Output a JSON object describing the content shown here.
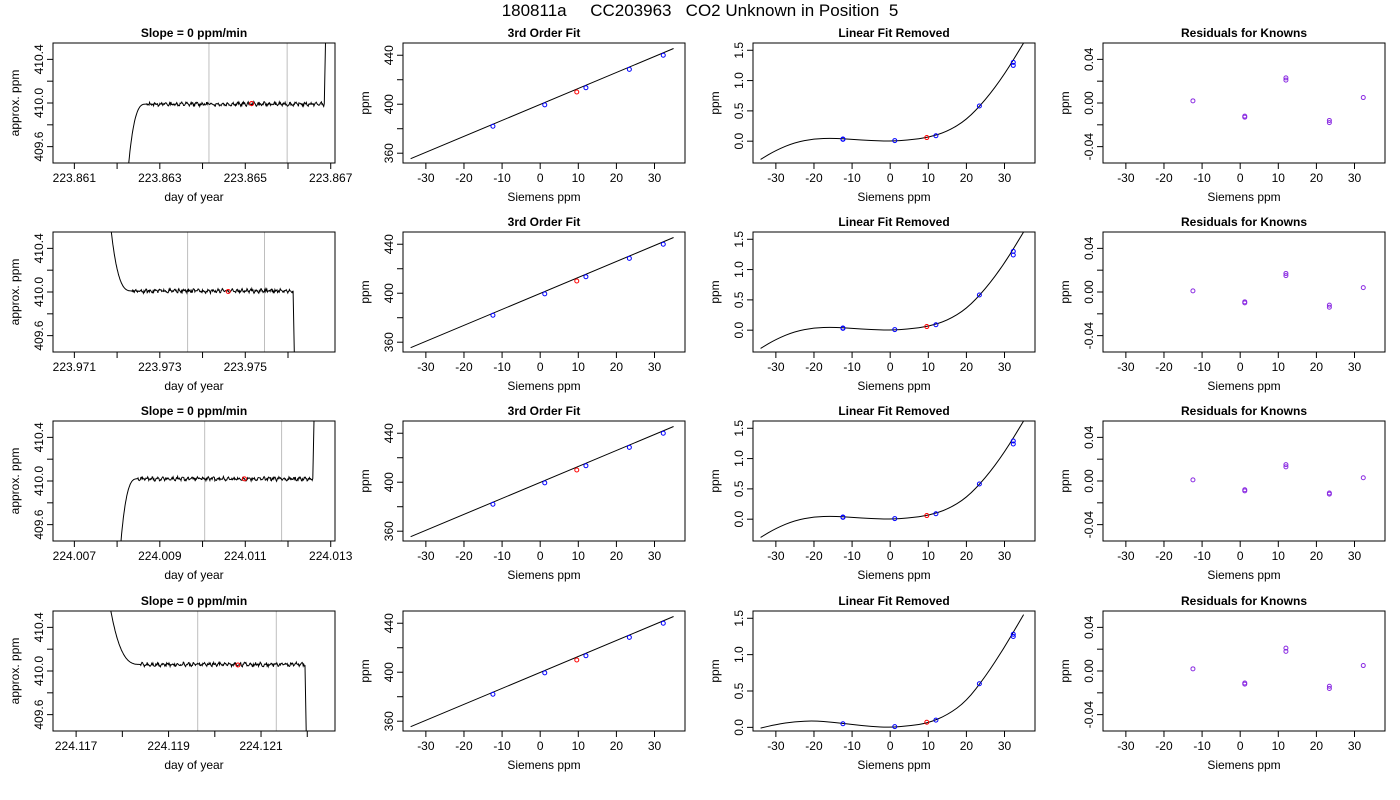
{
  "title": "180811a     CC203963   CO2 Unknown in Position  5",
  "colors": {
    "line": "#000000",
    "vline": "#bebebe",
    "known": "#0000ff",
    "unknown": "#ff0000",
    "resid": "#8a2be2"
  },
  "chart_data": [
    {
      "type": "line",
      "title": "Slope =  0  ppm/min",
      "xlabel": "day of year",
      "ylabel": "approx. ppm",
      "xlim": [
        223.8605,
        223.8671
      ],
      "ylim": [
        409.45,
        410.55
      ],
      "xticks": [
        223.861,
        223.862,
        223.863,
        223.864,
        223.865,
        223.866,
        223.867
      ],
      "xtick_labels": [
        "223.861",
        "",
        "223.863",
        "",
        "223.865",
        "",
        "223.867"
      ],
      "yticks": [
        409.6,
        409.8,
        410.0,
        410.2,
        410.4
      ],
      "ytick_labels": [
        "409.6",
        "",
        "410.0",
        "",
        "410.4"
      ],
      "trace": {
        "x0": 223.86226,
        "rise_end": 223.86268,
        "x_end": 223.86685,
        "plateau": 409.99,
        "start_low": 409.4,
        "end_high": 410.6,
        "shape": "rise_then_rise"
      },
      "vlines": [
        223.86415,
        223.86598
      ],
      "marker": {
        "x": 223.86515,
        "y": 409.995
      }
    },
    {
      "type": "scatter_fit",
      "title": "3rd Order Fit",
      "xlabel": "Siemens ppm",
      "ylabel": "ppm",
      "xlim": [
        -36,
        38
      ],
      "ylim": [
        352,
        450
      ],
      "xticks": [
        -30,
        -20,
        -10,
        0,
        10,
        20,
        30
      ],
      "yticks": [
        360,
        380,
        400,
        420,
        440
      ],
      "ytick_labels": [
        "360",
        "",
        "400",
        "",
        "440"
      ],
      "fit_line": {
        "x0": -34,
        "y0": 355.5,
        "x1": 35,
        "y1": 445.5
      },
      "known_points": [
        [
          -12.4,
          382
        ],
        [
          1.2,
          399.5
        ],
        [
          12.0,
          413.5
        ],
        [
          23.4,
          428.5
        ],
        [
          32.3,
          440
        ]
      ],
      "unknown_points": [
        [
          9.6,
          410
        ]
      ]
    },
    {
      "type": "scatter_fit",
      "title": "Linear Fit Removed",
      "xlabel": "Siemens ppm",
      "ylabel": "ppm",
      "xlim": [
        -36,
        38
      ],
      "ylim": [
        -0.36,
        1.62
      ],
      "xticks": [
        -30,
        -20,
        -10,
        0,
        10,
        20,
        30
      ],
      "yticks": [
        0.0,
        0.5,
        1.0,
        1.5
      ],
      "ytick_labels": [
        "0.0",
        "0.5",
        "1.0",
        "1.5"
      ],
      "curve": [
        [
          -34,
          -0.3
        ],
        [
          -30,
          -0.15
        ],
        [
          -25,
          -0.02
        ],
        [
          -20,
          0.04
        ],
        [
          -15,
          0.05
        ],
        [
          -10,
          0.03
        ],
        [
          -5,
          0.01
        ],
        [
          0,
          0.0
        ],
        [
          5,
          0.02
        ],
        [
          10,
          0.06
        ],
        [
          15,
          0.16
        ],
        [
          20,
          0.35
        ],
        [
          25,
          0.68
        ],
        [
          30,
          1.1
        ],
        [
          35,
          1.62
        ]
      ],
      "known_points": [
        [
          -12.4,
          0.03
        ],
        [
          -12.4,
          0.035
        ],
        [
          1.2,
          0.01
        ],
        [
          12.0,
          0.09
        ],
        [
          23.4,
          0.58
        ],
        [
          32.3,
          1.25
        ],
        [
          32.3,
          1.3
        ]
      ],
      "unknown_points": [
        [
          9.6,
          0.06
        ]
      ]
    },
    {
      "type": "scatter",
      "title": "Residuals for Knowns",
      "xlabel": "Siemens ppm",
      "ylabel": "ppm",
      "xlim": [
        -36,
        38
      ],
      "ylim": [
        -0.055,
        0.055
      ],
      "xticks": [
        -30,
        -20,
        -10,
        0,
        10,
        20,
        30
      ],
      "yticks": [
        -0.04,
        -0.02,
        0.0,
        0.02,
        0.04
      ],
      "ytick_labels": [
        "-0.04",
        "",
        "0.00",
        "",
        "0.04"
      ],
      "points": [
        [
          -12.4,
          0.002
        ],
        [
          1.2,
          -0.012
        ],
        [
          1.2,
          -0.013
        ],
        [
          12.0,
          0.021
        ],
        [
          12.0,
          0.023
        ],
        [
          23.4,
          -0.016
        ],
        [
          23.4,
          -0.018
        ],
        [
          32.3,
          0.005
        ]
      ]
    },
    {
      "type": "line",
      "title": "",
      "xlabel": "day of year",
      "ylabel": "approx. ppm",
      "xlim": [
        223.9705,
        223.9771
      ],
      "ylim": [
        409.45,
        410.55
      ],
      "xticks": [
        223.971,
        223.972,
        223.973,
        223.974,
        223.975,
        223.976
      ],
      "xtick_labels": [
        "223.971",
        "",
        "223.973",
        "",
        "223.975",
        ""
      ],
      "yticks": [
        409.6,
        409.8,
        410.0,
        410.2,
        410.4
      ],
      "ytick_labels": [
        "409.6",
        "",
        "410.0",
        "",
        "410.4"
      ],
      "trace": {
        "x0": 223.97185,
        "rise_end": 223.97235,
        "x_end": 223.97612,
        "plateau": 410.01,
        "start_low": 410.6,
        "end_high": 409.4,
        "shape": "fall_then_fall"
      },
      "vlines": [
        223.97365,
        223.97545
      ],
      "marker": {
        "x": 223.9746,
        "y": 410.005
      }
    },
    {
      "type": "scatter_fit",
      "title": "3rd Order Fit",
      "xlabel": "Siemens ppm",
      "ylabel": "ppm",
      "xlim": [
        -36,
        38
      ],
      "ylim": [
        352,
        450
      ],
      "xticks": [
        -30,
        -20,
        -10,
        0,
        10,
        20,
        30
      ],
      "yticks": [
        360,
        380,
        400,
        420,
        440
      ],
      "ytick_labels": [
        "360",
        "",
        "400",
        "",
        "440"
      ],
      "fit_line": {
        "x0": -34,
        "y0": 355.5,
        "x1": 35,
        "y1": 445.5
      },
      "known_points": [
        [
          -12.4,
          382
        ],
        [
          1.2,
          399.5
        ],
        [
          12.0,
          413.5
        ],
        [
          23.4,
          428.5
        ],
        [
          32.3,
          440
        ]
      ],
      "unknown_points": [
        [
          9.6,
          410
        ]
      ]
    },
    {
      "type": "scatter_fit",
      "title": "Linear Fit Removed",
      "xlabel": "Siemens ppm",
      "ylabel": "ppm",
      "xlim": [
        -36,
        38
      ],
      "ylim": [
        -0.36,
        1.62
      ],
      "xticks": [
        -30,
        -20,
        -10,
        0,
        10,
        20,
        30
      ],
      "yticks": [
        0.0,
        0.5,
        1.0,
        1.5
      ],
      "ytick_labels": [
        "0.0",
        "0.5",
        "1.0",
        "1.5"
      ],
      "curve": [
        [
          -34,
          -0.3
        ],
        [
          -30,
          -0.15
        ],
        [
          -25,
          -0.02
        ],
        [
          -20,
          0.04
        ],
        [
          -15,
          0.05
        ],
        [
          -10,
          0.03
        ],
        [
          -5,
          0.01
        ],
        [
          0,
          0.0
        ],
        [
          5,
          0.02
        ],
        [
          10,
          0.06
        ],
        [
          15,
          0.16
        ],
        [
          20,
          0.35
        ],
        [
          25,
          0.68
        ],
        [
          30,
          1.1
        ],
        [
          35,
          1.62
        ]
      ],
      "known_points": [
        [
          -12.4,
          0.03
        ],
        [
          -12.4,
          0.035
        ],
        [
          1.2,
          0.01
        ],
        [
          12.0,
          0.09
        ],
        [
          23.4,
          0.58
        ],
        [
          32.3,
          1.24
        ],
        [
          32.3,
          1.3
        ]
      ],
      "unknown_points": [
        [
          9.6,
          0.06
        ]
      ]
    },
    {
      "type": "scatter",
      "title": "Residuals for Knowns",
      "xlabel": "Siemens ppm",
      "ylabel": "ppm",
      "xlim": [
        -36,
        38
      ],
      "ylim": [
        -0.055,
        0.055
      ],
      "xticks": [
        -30,
        -20,
        -10,
        0,
        10,
        20,
        30
      ],
      "yticks": [
        -0.04,
        -0.02,
        0.0,
        0.02,
        0.04
      ],
      "ytick_labels": [
        "-0.04",
        "",
        "0.00",
        "",
        "0.04"
      ],
      "points": [
        [
          -12.4,
          0.001
        ],
        [
          1.2,
          -0.009
        ],
        [
          1.2,
          -0.01
        ],
        [
          12.0,
          0.015
        ],
        [
          12.0,
          0.017
        ],
        [
          23.4,
          -0.012
        ],
        [
          23.4,
          -0.014
        ],
        [
          32.3,
          0.004
        ]
      ]
    },
    {
      "type": "line",
      "title": "Slope =  0  ppm/min",
      "xlabel": "day of year",
      "ylabel": "approx. ppm",
      "xlim": [
        224.0065,
        224.0131
      ],
      "ylim": [
        409.45,
        410.55
      ],
      "xticks": [
        224.007,
        224.008,
        224.009,
        224.01,
        224.011,
        224.012,
        224.013
      ],
      "xtick_labels": [
        "224.007",
        "",
        "224.009",
        "",
        "224.011",
        "",
        "224.013"
      ],
      "yticks": [
        409.6,
        409.8,
        410.0,
        410.2,
        410.4
      ],
      "ytick_labels": [
        "409.6",
        "",
        "410.0",
        "",
        "410.4"
      ],
      "trace": {
        "x0": 224.00808,
        "rise_end": 224.00848,
        "x_end": 224.01258,
        "plateau": 410.02,
        "start_low": 409.4,
        "end_high": 410.6,
        "shape": "rise_then_rise"
      },
      "vlines": [
        224.01005,
        224.01185
      ],
      "marker": {
        "x": 224.01098,
        "y": 410.02
      }
    },
    {
      "type": "scatter_fit",
      "title": "3rd Order Fit",
      "xlabel": "Siemens ppm",
      "ylabel": "ppm",
      "xlim": [
        -36,
        38
      ],
      "ylim": [
        352,
        450
      ],
      "xticks": [
        -30,
        -20,
        -10,
        0,
        10,
        20,
        30
      ],
      "yticks": [
        360,
        380,
        400,
        420,
        440
      ],
      "ytick_labels": [
        "360",
        "",
        "400",
        "",
        "440"
      ],
      "fit_line": {
        "x0": -34,
        "y0": 355.5,
        "x1": 35,
        "y1": 445.5
      },
      "known_points": [
        [
          -12.4,
          382
        ],
        [
          1.2,
          399.5
        ],
        [
          12.0,
          413.5
        ],
        [
          23.4,
          428.5
        ],
        [
          32.3,
          440
        ]
      ],
      "unknown_points": [
        [
          9.6,
          410
        ]
      ]
    },
    {
      "type": "scatter_fit",
      "title": "Linear Fit Removed",
      "xlabel": "Siemens ppm",
      "ylabel": "ppm",
      "xlim": [
        -36,
        38
      ],
      "ylim": [
        -0.36,
        1.62
      ],
      "xticks": [
        -30,
        -20,
        -10,
        0,
        10,
        20,
        30
      ],
      "yticks": [
        0.0,
        0.5,
        1.0,
        1.5
      ],
      "ytick_labels": [
        "0.0",
        "0.5",
        "1.0",
        "1.5"
      ],
      "curve": [
        [
          -34,
          -0.3
        ],
        [
          -30,
          -0.15
        ],
        [
          -25,
          -0.02
        ],
        [
          -20,
          0.04
        ],
        [
          -15,
          0.05
        ],
        [
          -10,
          0.03
        ],
        [
          -5,
          0.01
        ],
        [
          0,
          0.0
        ],
        [
          5,
          0.02
        ],
        [
          10,
          0.06
        ],
        [
          15,
          0.16
        ],
        [
          20,
          0.35
        ],
        [
          25,
          0.68
        ],
        [
          30,
          1.1
        ],
        [
          35,
          1.62
        ]
      ],
      "known_points": [
        [
          -12.4,
          0.03
        ],
        [
          -12.4,
          0.035
        ],
        [
          1.2,
          0.01
        ],
        [
          12.0,
          0.09
        ],
        [
          23.4,
          0.58
        ],
        [
          32.3,
          1.24
        ],
        [
          32.3,
          1.29
        ]
      ],
      "unknown_points": [
        [
          9.6,
          0.06
        ]
      ]
    },
    {
      "type": "scatter",
      "title": "Residuals for Knowns",
      "xlabel": "Siemens ppm",
      "ylabel": "ppm",
      "xlim": [
        -36,
        38
      ],
      "ylim": [
        -0.055,
        0.055
      ],
      "xticks": [
        -30,
        -20,
        -10,
        0,
        10,
        20,
        30
      ],
      "yticks": [
        -0.04,
        -0.02,
        0.0,
        0.02,
        0.04
      ],
      "ytick_labels": [
        "-0.04",
        "",
        "0.00",
        "",
        "0.04"
      ],
      "points": [
        [
          -12.4,
          0.001
        ],
        [
          1.2,
          -0.008
        ],
        [
          1.2,
          -0.009
        ],
        [
          12.0,
          0.013
        ],
        [
          12.0,
          0.015
        ],
        [
          23.4,
          -0.011
        ],
        [
          23.4,
          -0.012
        ],
        [
          32.3,
          0.003
        ]
      ]
    },
    {
      "type": "line",
      "title": "Slope =  0  ppm/min",
      "xlabel": "day of year",
      "ylabel": "approx. ppm",
      "xlim": [
        224.1165,
        224.1226
      ],
      "ylim": [
        409.45,
        410.55
      ],
      "xticks": [
        224.117,
        224.118,
        224.119,
        224.12,
        224.121,
        224.122
      ],
      "xtick_labels": [
        "224.117",
        "",
        "224.119",
        "",
        "224.121",
        ""
      ],
      "yticks": [
        409.6,
        409.8,
        410.0,
        410.2,
        410.4
      ],
      "ytick_labels": [
        "409.6",
        "",
        "410.0",
        "",
        "410.4"
      ],
      "trace": {
        "x0": 224.11773,
        "rise_end": 224.1184,
        "x_end": 224.12195,
        "plateau": 410.06,
        "start_low": 410.6,
        "end_high": 409.4,
        "shape": "fall_then_fall"
      },
      "vlines": [
        224.11963,
        224.12133
      ],
      "marker": {
        "x": 224.1205,
        "y": 410.055
      }
    },
    {
      "type": "scatter_fit",
      "title": "",
      "xlabel": "Siemens ppm",
      "ylabel": "ppm",
      "xlim": [
        -36,
        38
      ],
      "ylim": [
        352,
        450
      ],
      "xticks": [
        -30,
        -20,
        -10,
        0,
        10,
        20,
        30
      ],
      "yticks": [
        360,
        380,
        400,
        420,
        440
      ],
      "ytick_labels": [
        "360",
        "",
        "400",
        "",
        "440"
      ],
      "fit_line": {
        "x0": -34,
        "y0": 355.5,
        "x1": 35,
        "y1": 445.5
      },
      "known_points": [
        [
          -12.4,
          382
        ],
        [
          1.2,
          399.5
        ],
        [
          12.0,
          413.5
        ],
        [
          23.4,
          428.5
        ],
        [
          32.3,
          440
        ]
      ],
      "unknown_points": [
        [
          9.6,
          410
        ]
      ]
    },
    {
      "type": "scatter_fit",
      "title": "Linear Fit Removed",
      "xlabel": "Siemens ppm",
      "ylabel": "ppm",
      "xlim": [
        -36,
        38
      ],
      "ylim": [
        -0.05,
        1.6
      ],
      "xticks": [
        -30,
        -20,
        -10,
        0,
        10,
        20,
        30
      ],
      "yticks": [
        0.0,
        0.5,
        1.0,
        1.5
      ],
      "ytick_labels": [
        "0.0",
        "0.5",
        "1.0",
        "1.5"
      ],
      "curve": [
        [
          -34,
          -0.01
        ],
        [
          -30,
          0.04
        ],
        [
          -25,
          0.08
        ],
        [
          -20,
          0.09
        ],
        [
          -15,
          0.07
        ],
        [
          -10,
          0.04
        ],
        [
          -5,
          0.01
        ],
        [
          0,
          0.0
        ],
        [
          5,
          0.02
        ],
        [
          10,
          0.06
        ],
        [
          15,
          0.17
        ],
        [
          20,
          0.36
        ],
        [
          25,
          0.7
        ],
        [
          30,
          1.1
        ],
        [
          35,
          1.55
        ]
      ],
      "known_points": [
        [
          -12.4,
          0.05
        ],
        [
          1.2,
          0.01
        ],
        [
          12.0,
          0.1
        ],
        [
          23.4,
          0.6
        ],
        [
          32.3,
          1.25
        ],
        [
          32.3,
          1.28
        ]
      ],
      "unknown_points": [
        [
          9.6,
          0.07
        ]
      ]
    },
    {
      "type": "scatter",
      "title": "Residuals for Knowns",
      "xlabel": "Siemens ppm",
      "ylabel": "ppm",
      "xlim": [
        -36,
        38
      ],
      "ylim": [
        -0.055,
        0.055
      ],
      "xticks": [
        -30,
        -20,
        -10,
        0,
        10,
        20,
        30
      ],
      "yticks": [
        -0.04,
        -0.02,
        0.0,
        0.02,
        0.04
      ],
      "ytick_labels": [
        "-0.04",
        "",
        "0.00",
        "",
        "0.04"
      ],
      "points": [
        [
          -12.4,
          0.002
        ],
        [
          1.2,
          -0.011
        ],
        [
          1.2,
          -0.012
        ],
        [
          12.0,
          0.018
        ],
        [
          12.0,
          0.021
        ],
        [
          23.4,
          -0.014
        ],
        [
          23.4,
          -0.016
        ],
        [
          32.3,
          0.005
        ]
      ]
    }
  ]
}
